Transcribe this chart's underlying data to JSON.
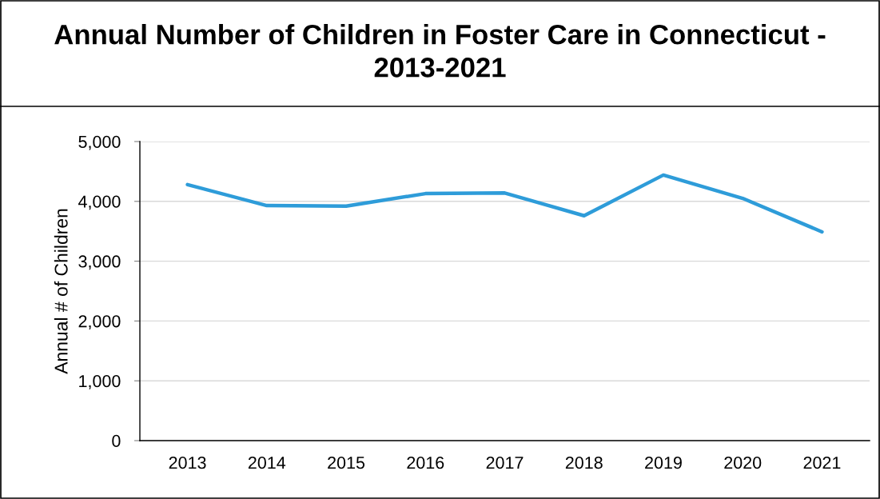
{
  "chart_data": {
    "type": "line",
    "title": "Annual Number of Children in Foster Care in Connecticut - 2013-2021",
    "ylabel": "Annual # of Children",
    "categories": [
      "2013",
      "2014",
      "2015",
      "2016",
      "2017",
      "2018",
      "2019",
      "2020",
      "2021"
    ],
    "series": [
      {
        "color": "#2e9cd9",
        "values": [
          4280,
          3930,
          3920,
          4130,
          4140,
          3760,
          4440,
          4050,
          3490
        ]
      }
    ],
    "ylim": [
      0,
      5000
    ],
    "yticks": [
      {
        "value": 0,
        "label": "0"
      },
      {
        "value": 1000,
        "label": "1,000"
      },
      {
        "value": 2000,
        "label": "2,000"
      },
      {
        "value": 3000,
        "label": "3,000"
      },
      {
        "value": 4000,
        "label": "4,000"
      },
      {
        "value": 5000,
        "label": "5,000"
      }
    ],
    "grid": "y",
    "marker": "none",
    "line_style": "solid"
  }
}
